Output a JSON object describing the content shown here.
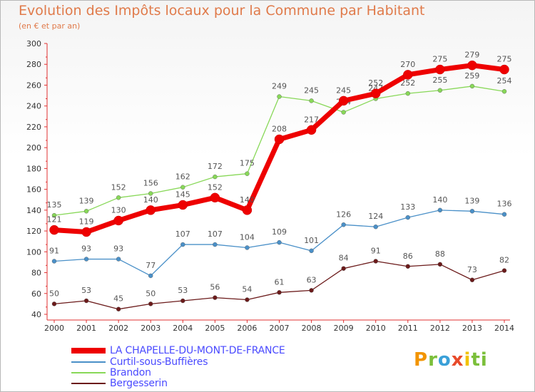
{
  "header": {
    "title": "Evolution des Impôts locaux pour la Commune par Habitant",
    "subtitle": "(en € et par an)"
  },
  "logo": {
    "letters": [
      "P",
      "r",
      "o",
      "x",
      "i",
      "ti"
    ]
  },
  "chart_data": {
    "type": "line",
    "x": [
      "2000",
      "2001",
      "2002",
      "2003",
      "2004",
      "2005",
      "2006",
      "2007",
      "2008",
      "2009",
      "2010",
      "2011",
      "2012",
      "2013",
      "2014"
    ],
    "ylim": [
      40,
      300
    ],
    "yticks": [
      40,
      60,
      80,
      100,
      120,
      140,
      160,
      180,
      200,
      220,
      240,
      260,
      280,
      300
    ],
    "grid": false,
    "legend_position": "bottom-left",
    "series": [
      {
        "name": "LA CHAPELLE-DU-MONT-DE-FRANCE",
        "color": "#ee0000",
        "label_color": "#555555",
        "values": [
          121,
          119,
          130,
          140,
          145,
          152,
          140,
          208,
          217,
          245,
          252,
          270,
          275,
          279,
          275
        ]
      },
      {
        "name": "Curtil-sous-Buffières",
        "color": "#4a90c8",
        "label_color": "#555555",
        "values": [
          91,
          93,
          93,
          77,
          107,
          107,
          104,
          109,
          101,
          126,
          124,
          133,
          140,
          139,
          136
        ]
      },
      {
        "name": "Brandon",
        "color": "#88d858",
        "label_color": "#555555",
        "values": [
          135,
          139,
          152,
          156,
          162,
          172,
          175,
          249,
          245,
          234,
          247,
          252,
          255,
          259,
          254
        ]
      },
      {
        "name": "Bergesserin",
        "color": "#6b1a1a",
        "label_color": "#555555",
        "values": [
          50,
          53,
          45,
          50,
          53,
          56,
          54,
          61,
          63,
          84,
          91,
          86,
          88,
          73,
          82
        ]
      }
    ]
  },
  "legend": {
    "items": [
      {
        "label": "LA CHAPELLE-DU-MONT-DE-FRANCE",
        "color": "#ee0000",
        "text_color": "#4a4aff"
      },
      {
        "label": "Curtil-sous-Buffières",
        "color": "#4a90c8",
        "text_color": "#4a4aff"
      },
      {
        "label": "Brandon",
        "color": "#88d858",
        "text_color": "#4a4aff"
      },
      {
        "label": "Bergesserin",
        "color": "#6b1a1a",
        "text_color": "#4a4aff"
      }
    ]
  }
}
